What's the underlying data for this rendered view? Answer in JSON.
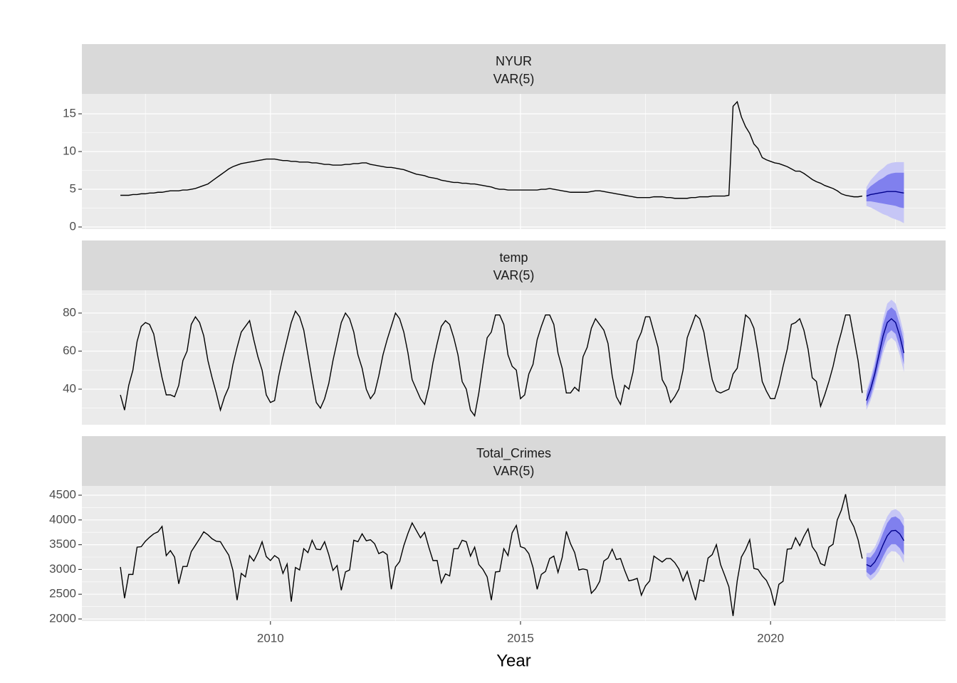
{
  "chart_data": [
    {
      "type": "line",
      "strip": [
        "NYUR",
        "VAR(5)"
      ],
      "xlim": [
        2006.23,
        2023.5
      ],
      "xticks": [
        2010,
        2015,
        2020
      ],
      "xminorticks": [
        2007.5,
        2012.5,
        2017.5,
        2022.5
      ],
      "ylim": [
        -0.28,
        17.64
      ],
      "yticks": [
        0,
        5,
        10,
        15
      ],
      "yminorticks": [
        2.5,
        7.5,
        12.5
      ],
      "series": [
        {
          "color": "#000000",
          "start": "2007-01",
          "values": [
            4.2,
            4.2,
            4.2,
            4.3,
            4.3,
            4.4,
            4.4,
            4.5,
            4.5,
            4.6,
            4.6,
            4.7,
            4.8,
            4.8,
            4.8,
            4.9,
            4.9,
            5.0,
            5.1,
            5.3,
            5.5,
            5.7,
            6.1,
            6.5,
            6.9,
            7.3,
            7.7,
            8.0,
            8.2,
            8.4,
            8.5,
            8.6,
            8.7,
            8.8,
            8.9,
            9.0,
            9.0,
            9.0,
            8.9,
            8.8,
            8.8,
            8.7,
            8.7,
            8.6,
            8.6,
            8.6,
            8.5,
            8.5,
            8.4,
            8.3,
            8.3,
            8.2,
            8.2,
            8.2,
            8.3,
            8.3,
            8.4,
            8.4,
            8.5,
            8.5,
            8.3,
            8.2,
            8.1,
            8.0,
            7.9,
            7.9,
            7.8,
            7.7,
            7.6,
            7.4,
            7.2,
            7.0,
            6.9,
            6.8,
            6.6,
            6.5,
            6.4,
            6.2,
            6.1,
            6.0,
            5.9,
            5.9,
            5.8,
            5.8,
            5.7,
            5.7,
            5.6,
            5.5,
            5.4,
            5.3,
            5.1,
            5.0,
            5.0,
            4.9,
            4.9,
            4.9,
            4.9,
            4.9,
            4.9,
            4.9,
            4.9,
            5.0,
            5.0,
            5.1,
            5.0,
            4.9,
            4.8,
            4.7,
            4.6,
            4.6,
            4.6,
            4.6,
            4.6,
            4.7,
            4.8,
            4.8,
            4.7,
            4.6,
            4.5,
            4.4,
            4.3,
            4.2,
            4.1,
            4.0,
            3.9,
            3.9,
            3.9,
            3.9,
            4.0,
            4.0,
            4.0,
            3.9,
            3.9,
            3.8,
            3.8,
            3.8,
            3.8,
            3.9,
            3.9,
            4.0,
            4.0,
            4.0,
            4.1,
            4.1,
            4.1,
            4.1,
            4.2,
            16.0,
            16.6,
            14.6,
            13.3,
            12.4,
            11.0,
            10.4,
            9.2,
            8.9,
            8.7,
            8.5,
            8.4,
            8.2,
            8.0,
            7.7,
            7.4,
            7.4,
            7.1,
            6.7,
            6.3,
            6.0,
            5.8,
            5.5,
            5.3,
            5.1,
            4.8,
            4.4,
            4.2,
            4.1,
            4.0,
            4.0,
            4.1
          ]
        },
        {
          "color": "#00008b",
          "start": "2021-12",
          "values": [
            4.1,
            4.3,
            4.4,
            4.5,
            4.6,
            4.7,
            4.7,
            4.7,
            4.6,
            4.5
          ],
          "bands": [
            {
              "color": "#c6c6f6",
              "lower": [
                2.8,
                2.6,
                2.3,
                2.0,
                1.7,
                1.5,
                1.2,
                1.0,
                0.8,
                0.5
              ],
              "upper": [
                5.3,
                6.2,
                6.8,
                7.4,
                7.8,
                8.3,
                8.5,
                8.6,
                8.6,
                8.6
              ]
            },
            {
              "color": "#8080ee",
              "lower": [
                3.4,
                3.4,
                3.3,
                3.2,
                3.1,
                3.0,
                2.9,
                2.8,
                2.6,
                2.5
              ],
              "upper": [
                4.8,
                5.4,
                5.8,
                6.2,
                6.5,
                6.9,
                7.1,
                7.2,
                7.2,
                7.2
              ]
            }
          ]
        }
      ]
    },
    {
      "type": "line",
      "strip": [
        "temp",
        "VAR(5)"
      ],
      "xlim": [
        2006.23,
        2023.5
      ],
      "xticks": [
        2010,
        2015,
        2020
      ],
      "xminorticks": [
        2007.5,
        2012.5,
        2017.5,
        2022.5
      ],
      "ylim": [
        21.3,
        91.96
      ],
      "yticks": [
        40,
        60,
        80
      ],
      "yminorticks": [
        30,
        50,
        70,
        90
      ],
      "series": [
        {
          "color": "#000000",
          "start": "2007-01",
          "values": [
            37,
            29,
            42,
            50,
            65,
            73,
            75,
            74,
            69,
            57,
            46,
            37,
            37,
            36,
            42,
            55,
            60,
            74,
            78,
            75,
            68,
            55,
            46,
            38,
            29,
            36,
            41,
            53,
            62,
            70,
            73,
            76,
            66,
            57,
            50,
            37,
            33,
            34,
            47,
            57,
            66,
            75,
            81,
            78,
            71,
            58,
            45,
            33,
            30,
            35,
            43,
            55,
            65,
            75,
            80,
            77,
            70,
            58,
            51,
            40,
            35,
            38,
            47,
            58,
            66,
            73,
            80,
            77,
            70,
            59,
            45,
            40,
            35,
            32,
            41,
            54,
            64,
            73,
            76,
            74,
            67,
            58,
            44,
            40,
            29,
            26,
            38,
            53,
            67,
            70,
            79,
            79,
            74,
            58,
            52,
            50,
            35,
            37,
            48,
            53,
            66,
            73,
            79,
            79,
            74,
            59,
            51,
            38,
            38,
            41,
            39,
            57,
            62,
            72,
            77,
            74,
            71,
            64,
            47,
            36,
            32,
            42,
            40,
            49,
            65,
            70,
            78,
            78,
            70,
            62,
            45,
            41,
            33,
            36,
            40,
            50,
            67,
            73,
            79,
            77,
            70,
            57,
            45,
            39,
            38,
            39,
            40,
            48,
            51,
            64,
            79,
            77,
            72,
            59,
            44,
            39,
            35,
            35,
            42,
            52,
            61,
            74,
            75,
            77,
            71,
            61,
            46,
            44,
            31,
            37,
            44,
            52,
            62,
            70,
            79,
            79,
            67,
            55,
            38
          ]
        },
        {
          "color": "#00008b",
          "start": "2021-12",
          "values": [
            34,
            40,
            48,
            58,
            68,
            75,
            77,
            75,
            68,
            59
          ],
          "bands": [
            {
              "color": "#c6c6f6",
              "lower": [
                29,
                34,
                41,
                50,
                59,
                65,
                67,
                65,
                58,
                49
              ],
              "upper": [
                39,
                46,
                55,
                66,
                77,
                85,
                87,
                85,
                78,
                69
              ]
            },
            {
              "color": "#8080ee",
              "lower": [
                31,
                36,
                44,
                53,
                62,
                69,
                71,
                69,
                62,
                53
              ],
              "upper": [
                37,
                44,
                52,
                63,
                74,
                81,
                83,
                81,
                74,
                65
              ]
            }
          ]
        }
      ]
    },
    {
      "type": "line",
      "strip": [
        "Total_Crimes",
        "VAR(5)"
      ],
      "xlabel": "Year",
      "xlim": [
        2006.23,
        2023.5
      ],
      "xticks": [
        2010,
        2015,
        2020
      ],
      "xminorticks": [
        2007.5,
        2012.5,
        2017.5,
        2022.5
      ],
      "ylim": [
        1957,
        4687
      ],
      "yticks": [
        2000,
        2500,
        3000,
        3500,
        4000,
        4500
      ],
      "yminorticks": [
        2250,
        2750,
        3250,
        3750,
        4250
      ],
      "series": [
        {
          "color": "#000000",
          "start": "2007-01",
          "values": [
            3050,
            2420,
            2900,
            2900,
            3450,
            3460,
            3570,
            3650,
            3720,
            3760,
            3870,
            3280,
            3380,
            3250,
            2710,
            3060,
            3060,
            3360,
            3490,
            3620,
            3760,
            3700,
            3620,
            3570,
            3560,
            3420,
            3290,
            2980,
            2380,
            2920,
            2850,
            3280,
            3170,
            3340,
            3560,
            3260,
            3180,
            3280,
            3220,
            2920,
            3110,
            2350,
            3040,
            2990,
            3420,
            3340,
            3590,
            3410,
            3400,
            3560,
            3300,
            2980,
            3080,
            2580,
            2950,
            2990,
            3590,
            3560,
            3720,
            3580,
            3600,
            3520,
            3320,
            3360,
            3300,
            2600,
            3050,
            3160,
            3480,
            3730,
            3940,
            3790,
            3640,
            3750,
            3450,
            3180,
            3180,
            2730,
            2910,
            2870,
            3420,
            3420,
            3590,
            3560,
            3270,
            3450,
            3100,
            3000,
            2850,
            2380,
            2950,
            2960,
            3420,
            3280,
            3740,
            3890,
            3460,
            3430,
            3320,
            3040,
            2600,
            2900,
            2960,
            3220,
            3270,
            2940,
            3240,
            3770,
            3520,
            3340,
            2990,
            3010,
            2990,
            2520,
            2610,
            2760,
            3170,
            3230,
            3410,
            3200,
            3220,
            2980,
            2770,
            2790,
            2820,
            2480,
            2670,
            2770,
            3270,
            3210,
            3150,
            3220,
            3220,
            3140,
            3010,
            2770,
            2960,
            2660,
            2380,
            2790,
            2760,
            3230,
            3300,
            3500,
            3100,
            2880,
            2650,
            2060,
            2770,
            3250,
            3400,
            3600,
            3020,
            3000,
            2870,
            2780,
            2600,
            2270,
            2700,
            2760,
            3410,
            3420,
            3640,
            3480,
            3670,
            3820,
            3460,
            3340,
            3120,
            3080,
            3450,
            3510,
            4000,
            4200,
            4520,
            4020,
            3860,
            3600,
            3220
          ]
        },
        {
          "color": "#00008b",
          "start": "2021-12",
          "values": [
            3100,
            3060,
            3150,
            3300,
            3500,
            3680,
            3780,
            3790,
            3720,
            3580
          ],
          "bands": [
            {
              "color": "#c6c6f6",
              "lower": [
                2870,
                2780,
                2850,
                2960,
                3130,
                3290,
                3370,
                3360,
                3280,
                3130
              ],
              "upper": [
                3330,
                3340,
                3450,
                3640,
                3870,
                4070,
                4190,
                4220,
                4160,
                4030
              ]
            },
            {
              "color": "#8080ee",
              "lower": [
                2950,
                2880,
                2950,
                3080,
                3260,
                3420,
                3510,
                3510,
                3430,
                3290
              ],
              "upper": [
                3250,
                3240,
                3350,
                3520,
                3740,
                3940,
                4050,
                4070,
                4010,
                3870
              ]
            }
          ]
        }
      ]
    }
  ]
}
